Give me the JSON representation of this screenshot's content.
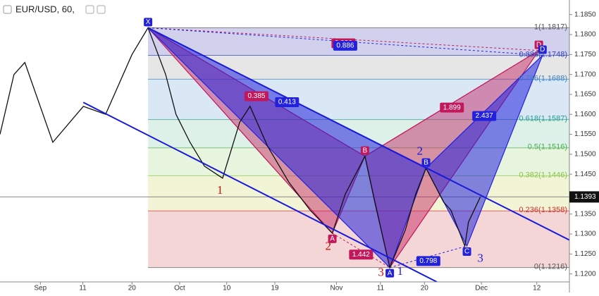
{
  "chart_data": {
    "type": "line",
    "title": "EUR/USD, 60,",
    "xlim": [
      0,
      110
    ],
    "ylim": [
      1.118,
      1.187
    ],
    "xticks": [
      {
        "value": 7.8,
        "label": "Sep"
      },
      {
        "value": 16,
        "label": "11"
      },
      {
        "value": 25.5,
        "label": "20"
      },
      {
        "value": 34.7,
        "label": "Oct"
      },
      {
        "value": 43.8,
        "label": "10"
      },
      {
        "value": 53.1,
        "label": "19"
      },
      {
        "value": 65,
        "label": "Nov"
      },
      {
        "value": 73.5,
        "label": "11"
      },
      {
        "value": 82,
        "label": "20"
      },
      {
        "value": 93,
        "label": "Dec"
      },
      {
        "value": 103.7,
        "label": "12"
      }
    ],
    "yticks": [
      {
        "value": 1.185,
        "label": "1.1850"
      },
      {
        "value": 1.18,
        "label": "1.1800"
      },
      {
        "value": 1.175,
        "label": "1.1750"
      },
      {
        "value": 1.17,
        "label": "1.1700"
      },
      {
        "value": 1.165,
        "label": "1.1650"
      },
      {
        "value": 1.16,
        "label": "1.1600"
      },
      {
        "value": 1.155,
        "label": "1.1550"
      },
      {
        "value": 1.15,
        "label": "1.1500"
      },
      {
        "value": 1.145,
        "label": "1.1450"
      },
      {
        "value": 1.135,
        "label": "1.1350"
      },
      {
        "value": 1.13,
        "label": "1.1300"
      },
      {
        "value": 1.125,
        "label": "1.1250"
      },
      {
        "value": 1.12,
        "label": "1.1200"
      }
    ],
    "series": [
      {
        "color": "#111111",
        "x": [
          0,
          2.7,
          4.8,
          10.2,
          16.1,
          20.4,
          25.5,
          28.6,
          32,
          34,
          36.7,
          39.5,
          43,
          46.3,
          48.3,
          51.7,
          55.8,
          59.9,
          64.2,
          66.7,
          70.5,
          72.4,
          75.3,
          78.3,
          80.3,
          82.3,
          85.7,
          87.1,
          89.8,
          90.5,
          92.8
        ],
        "values": [
          1.155,
          1.17,
          1.173,
          1.153,
          1.162,
          1.16,
          1.175,
          1.1817,
          1.17,
          1.16,
          1.153,
          1.147,
          1.144,
          1.158,
          1.162,
          1.152,
          1.143,
          1.136,
          1.1302,
          1.14,
          1.1495,
          1.138,
          1.1216,
          1.131,
          1.14,
          1.1465,
          1.138,
          1.136,
          1.127,
          1.133,
          1.1393
        ]
      }
    ],
    "last_price": 1.1393,
    "fib_levels": [
      {
        "value": 1.1817,
        "label": "1(1.1817)",
        "color": "#c9c9ea",
        "text_color": "#555555"
      },
      {
        "value": 1.1748,
        "label": "0.886(1.1748)",
        "color": "#e2e2e2",
        "text_color": "#3344bb"
      },
      {
        "value": 1.1688,
        "label": "0.786(1.1688)",
        "color": "#d3e4f3",
        "text_color": "#3b82c4"
      },
      {
        "value": 1.1587,
        "label": "0.618(1.1587)",
        "color": "#d7efe4",
        "text_color": "#2a9d8f"
      },
      {
        "value": 1.1516,
        "label": "0.5(1.1516)",
        "color": "#e4f3d8",
        "text_color": "#4caf50"
      },
      {
        "value": 1.1446,
        "label": "0.382(1.1446)",
        "color": "#eef3cf",
        "text_color": "#8bc34a"
      },
      {
        "value": 1.1358,
        "label": "0.236(1.1358)",
        "color": "#f3cfcf",
        "text_color": "#d32f2f"
      },
      {
        "value": 1.1216,
        "label": "0(1.1216)",
        "color": "#f3cfcf",
        "text_color": "#555555"
      }
    ],
    "trend_lines": [
      {
        "color": "#1a1adb",
        "x": [
          28.6,
          110
        ],
        "y": [
          1.1817,
          1.1285
        ]
      },
      {
        "color": "#1a1adb",
        "x": [
          16.1,
          84.4
        ],
        "y": [
          1.163,
          1.118
        ]
      }
    ],
    "patterns": [
      {
        "color": "#c2185b",
        "points": {
          "X": {
            "x": 28.6,
            "y": 1.1817
          },
          "A": {
            "x": 64.2,
            "y": 1.1302,
            "label": "A"
          },
          "B": {
            "x": 70.5,
            "y": 1.1495,
            "label": "B"
          },
          "C": {
            "x": 75.3,
            "y": 1.1216
          },
          "D": {
            "x": 104.1,
            "y": 1.176,
            "label": "D"
          }
        },
        "ratios": {
          "XB": 0.385,
          "AC": 1.442,
          "BD": 1.899,
          "XD": 0.886
        }
      },
      {
        "color": "#2222dd",
        "points": {
          "X": {
            "x": 28.6,
            "y": 1.1817,
            "label": "X"
          },
          "A": {
            "x": 75.3,
            "y": 1.1216,
            "label": "A"
          },
          "B": {
            "x": 82.3,
            "y": 1.1465,
            "label": "B"
          },
          "C": {
            "x": 90.2,
            "y": 1.127,
            "label": "C"
          },
          "D": {
            "x": 104.8,
            "y": 1.1748,
            "label": "D"
          }
        },
        "ratios": {
          "XB": 0.413,
          "AC": 0.798,
          "BD": 2.437,
          "XD": 0.886
        }
      }
    ],
    "wave_labels": [
      {
        "text": "1",
        "x": 42.5,
        "y": 1.1408,
        "color": "#d01010"
      },
      {
        "text": "2",
        "x": 63.4,
        "y": 1.1267,
        "color": "#d01010"
      },
      {
        "text": "3",
        "x": 73.6,
        "y": 1.1202,
        "color": "#d01010"
      },
      {
        "text": "2",
        "x": 81.1,
        "y": 1.1506,
        "color": "#1a1adb"
      },
      {
        "text": "3",
        "x": 92.8,
        "y": 1.1237,
        "color": "#1a1adb"
      },
      {
        "text": "1",
        "x": 77.3,
        "y": 1.1205,
        "color": "#1a1adb"
      }
    ]
  }
}
